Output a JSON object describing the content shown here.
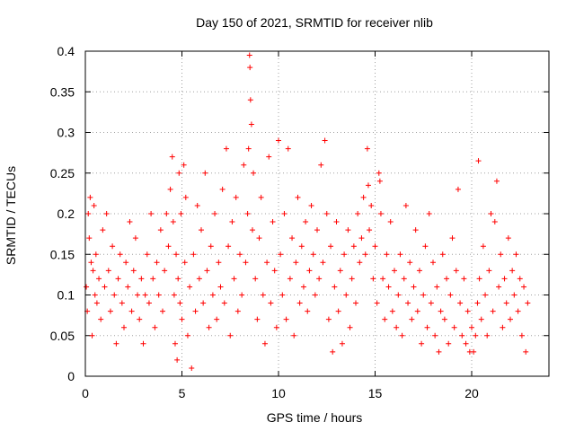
{
  "chart_data": {
    "type": "scatter",
    "title": "Day 150 of 2021, SRMTID for receiver nlib",
    "xlabel": "GPS time / hours",
    "ylabel": "SRMTID / TECUs",
    "xlim": [
      0,
      24
    ],
    "ylim": [
      0,
      0.4
    ],
    "x_ticks": [
      0,
      5,
      10,
      15,
      20
    ],
    "x_tick_labels": [
      "0",
      "5",
      "10",
      "15",
      "20"
    ],
    "y_ticks": [
      0,
      0.05,
      0.1,
      0.15,
      0.2,
      0.25,
      0.3,
      0.35,
      0.4
    ],
    "y_tick_labels": [
      "0",
      "0.05",
      "0.1",
      "0.15",
      "0.2",
      "0.25",
      "0.3",
      "0.35",
      "0.4"
    ],
    "grid": true,
    "marker": "plus",
    "color": "#ff0000",
    "series": [
      {
        "name": "SRMTID",
        "points": [
          [
            0.05,
            0.11
          ],
          [
            0.1,
            0.08
          ],
          [
            0.15,
            0.2
          ],
          [
            0.2,
            0.17
          ],
          [
            0.25,
            0.22
          ],
          [
            0.3,
            0.14
          ],
          [
            0.35,
            0.05
          ],
          [
            0.4,
            0.13
          ],
          [
            0.45,
            0.21
          ],
          [
            0.5,
            0.1
          ],
          [
            0.55,
            0.15
          ],
          [
            0.6,
            0.09
          ],
          [
            0.7,
            0.12
          ],
          [
            0.8,
            0.07
          ],
          [
            0.9,
            0.18
          ],
          [
            1.0,
            0.11
          ],
          [
            1.1,
            0.2
          ],
          [
            1.2,
            0.13
          ],
          [
            1.3,
            0.08
          ],
          [
            1.4,
            0.16
          ],
          [
            1.5,
            0.1
          ],
          [
            1.6,
            0.04
          ],
          [
            1.7,
            0.12
          ],
          [
            1.8,
            0.15
          ],
          [
            1.9,
            0.09
          ],
          [
            2.0,
            0.06
          ],
          [
            2.1,
            0.14
          ],
          [
            2.2,
            0.11
          ],
          [
            2.3,
            0.19
          ],
          [
            2.4,
            0.08
          ],
          [
            2.5,
            0.13
          ],
          [
            2.6,
            0.17
          ],
          [
            2.7,
            0.1
          ],
          [
            2.8,
            0.07
          ],
          [
            2.9,
            0.12
          ],
          [
            3.0,
            0.04
          ],
          [
            3.1,
            0.1
          ],
          [
            3.2,
            0.15
          ],
          [
            3.3,
            0.09
          ],
          [
            3.4,
            0.2
          ],
          [
            3.5,
            0.12
          ],
          [
            3.6,
            0.06
          ],
          [
            3.7,
            0.14
          ],
          [
            3.8,
            0.1
          ],
          [
            3.9,
            0.18
          ],
          [
            4.0,
            0.08
          ],
          [
            4.1,
            0.13
          ],
          [
            4.2,
            0.2
          ],
          [
            4.3,
            0.16
          ],
          [
            4.4,
            0.23
          ],
          [
            4.5,
            0.27
          ],
          [
            4.55,
            0.19
          ],
          [
            4.6,
            0.1
          ],
          [
            4.65,
            0.04
          ],
          [
            4.7,
            0.15
          ],
          [
            4.75,
            0.02
          ],
          [
            4.8,
            0.12
          ],
          [
            4.85,
            0.25
          ],
          [
            4.9,
            0.09
          ],
          [
            4.95,
            0.2
          ],
          [
            5.0,
            0.07
          ],
          [
            5.1,
            0.26
          ],
          [
            5.15,
            0.14
          ],
          [
            5.2,
            0.22
          ],
          [
            5.3,
            0.05
          ],
          [
            5.4,
            0.11
          ],
          [
            5.5,
            0.01
          ],
          [
            5.6,
            0.15
          ],
          [
            5.7,
            0.08
          ],
          [
            5.8,
            0.21
          ],
          [
            5.9,
            0.12
          ],
          [
            6.0,
            0.18
          ],
          [
            6.1,
            0.09
          ],
          [
            6.2,
            0.25
          ],
          [
            6.3,
            0.13
          ],
          [
            6.4,
            0.06
          ],
          [
            6.5,
            0.16
          ],
          [
            6.6,
            0.1
          ],
          [
            6.7,
            0.2
          ],
          [
            6.8,
            0.07
          ],
          [
            6.9,
            0.14
          ],
          [
            7.0,
            0.11
          ],
          [
            7.1,
            0.23
          ],
          [
            7.2,
            0.09
          ],
          [
            7.3,
            0.28
          ],
          [
            7.4,
            0.16
          ],
          [
            7.5,
            0.05
          ],
          [
            7.6,
            0.19
          ],
          [
            7.7,
            0.12
          ],
          [
            7.8,
            0.22
          ],
          [
            7.9,
            0.08
          ],
          [
            8.0,
            0.15
          ],
          [
            8.1,
            0.1
          ],
          [
            8.2,
            0.26
          ],
          [
            8.3,
            0.14
          ],
          [
            8.4,
            0.2
          ],
          [
            8.45,
            0.28
          ],
          [
            8.5,
            0.395
          ],
          [
            8.52,
            0.38
          ],
          [
            8.55,
            0.34
          ],
          [
            8.6,
            0.31
          ],
          [
            8.65,
            0.18
          ],
          [
            8.7,
            0.25
          ],
          [
            8.8,
            0.12
          ],
          [
            8.9,
            0.07
          ],
          [
            9.0,
            0.17
          ],
          [
            9.1,
            0.22
          ],
          [
            9.2,
            0.1
          ],
          [
            9.3,
            0.04
          ],
          [
            9.4,
            0.14
          ],
          [
            9.5,
            0.27
          ],
          [
            9.6,
            0.09
          ],
          [
            9.7,
            0.19
          ],
          [
            9.8,
            0.13
          ],
          [
            9.9,
            0.06
          ],
          [
            10.0,
            0.29
          ],
          [
            10.1,
            0.15
          ],
          [
            10.2,
            0.1
          ],
          [
            10.3,
            0.2
          ],
          [
            10.4,
            0.07
          ],
          [
            10.5,
            0.28
          ],
          [
            10.6,
            0.12
          ],
          [
            10.7,
            0.17
          ],
          [
            10.8,
            0.05
          ],
          [
            10.9,
            0.14
          ],
          [
            11.0,
            0.22
          ],
          [
            11.1,
            0.09
          ],
          [
            11.2,
            0.16
          ],
          [
            11.3,
            0.11
          ],
          [
            11.4,
            0.19
          ],
          [
            11.5,
            0.08
          ],
          [
            11.6,
            0.13
          ],
          [
            11.7,
            0.21
          ],
          [
            11.8,
            0.15
          ],
          [
            11.9,
            0.1
          ],
          [
            12.0,
            0.18
          ],
          [
            12.1,
            0.12
          ],
          [
            12.2,
            0.26
          ],
          [
            12.3,
            0.14
          ],
          [
            12.4,
            0.29
          ],
          [
            12.5,
            0.2
          ],
          [
            12.6,
            0.07
          ],
          [
            12.7,
            0.16
          ],
          [
            12.8,
            0.03
          ],
          [
            12.9,
            0.11
          ],
          [
            13.0,
            0.19
          ],
          [
            13.1,
            0.08
          ],
          [
            13.2,
            0.13
          ],
          [
            13.3,
            0.04
          ],
          [
            13.4,
            0.15
          ],
          [
            13.5,
            0.1
          ],
          [
            13.6,
            0.18
          ],
          [
            13.7,
            0.06
          ],
          [
            13.8,
            0.12
          ],
          [
            13.9,
            0.16
          ],
          [
            14.0,
            0.09
          ],
          [
            14.1,
            0.2
          ],
          [
            14.2,
            0.14
          ],
          [
            14.3,
            0.17
          ],
          [
            14.4,
            0.22
          ],
          [
            14.5,
            0.15
          ],
          [
            14.6,
            0.28
          ],
          [
            14.65,
            0.235
          ],
          [
            14.7,
            0.18
          ],
          [
            14.8,
            0.21
          ],
          [
            14.9,
            0.12
          ],
          [
            15.0,
            0.16
          ],
          [
            15.1,
            0.09
          ],
          [
            15.2,
            0.25
          ],
          [
            15.25,
            0.24
          ],
          [
            15.3,
            0.2
          ],
          [
            15.4,
            0.12
          ],
          [
            15.5,
            0.07
          ],
          [
            15.6,
            0.15
          ],
          [
            15.7,
            0.11
          ],
          [
            15.8,
            0.19
          ],
          [
            15.9,
            0.08
          ],
          [
            16.0,
            0.13
          ],
          [
            16.1,
            0.06
          ],
          [
            16.2,
            0.1
          ],
          [
            16.3,
            0.15
          ],
          [
            16.4,
            0.05
          ],
          [
            16.5,
            0.12
          ],
          [
            16.6,
            0.21
          ],
          [
            16.7,
            0.09
          ],
          [
            16.8,
            0.14
          ],
          [
            16.9,
            0.07
          ],
          [
            17.0,
            0.11
          ],
          [
            17.1,
            0.18
          ],
          [
            17.2,
            0.08
          ],
          [
            17.3,
            0.13
          ],
          [
            17.4,
            0.04
          ],
          [
            17.5,
            0.1
          ],
          [
            17.6,
            0.16
          ],
          [
            17.7,
            0.06
          ],
          [
            17.8,
            0.2
          ],
          [
            17.9,
            0.09
          ],
          [
            18.0,
            0.14
          ],
          [
            18.1,
            0.05
          ],
          [
            18.2,
            0.11
          ],
          [
            18.3,
            0.03
          ],
          [
            18.4,
            0.08
          ],
          [
            18.5,
            0.15
          ],
          [
            18.6,
            0.07
          ],
          [
            18.7,
            0.12
          ],
          [
            18.8,
            0.04
          ],
          [
            18.9,
            0.1
          ],
          [
            19.0,
            0.17
          ],
          [
            19.1,
            0.06
          ],
          [
            19.2,
            0.13
          ],
          [
            19.3,
            0.23
          ],
          [
            19.4,
            0.09
          ],
          [
            19.5,
            0.05
          ],
          [
            19.6,
            0.12
          ],
          [
            19.7,
            0.04
          ],
          [
            19.8,
            0.08
          ],
          [
            19.9,
            0.03
          ],
          [
            20.0,
            0.06
          ],
          [
            20.1,
            0.03
          ],
          [
            20.2,
            0.05
          ],
          [
            20.3,
            0.09
          ],
          [
            20.35,
            0.265
          ],
          [
            20.4,
            0.12
          ],
          [
            20.5,
            0.07
          ],
          [
            20.6,
            0.16
          ],
          [
            20.7,
            0.1
          ],
          [
            20.8,
            0.05
          ],
          [
            20.9,
            0.13
          ],
          [
            21.0,
            0.2
          ],
          [
            21.1,
            0.08
          ],
          [
            21.2,
            0.19
          ],
          [
            21.3,
            0.24
          ],
          [
            21.4,
            0.11
          ],
          [
            21.5,
            0.15
          ],
          [
            21.6,
            0.06
          ],
          [
            21.7,
            0.12
          ],
          [
            21.8,
            0.09
          ],
          [
            21.9,
            0.17
          ],
          [
            22.0,
            0.07
          ],
          [
            22.1,
            0.13
          ],
          [
            22.2,
            0.1
          ],
          [
            22.3,
            0.15
          ],
          [
            22.4,
            0.08
          ],
          [
            22.5,
            0.12
          ],
          [
            22.6,
            0.05
          ],
          [
            22.7,
            0.11
          ],
          [
            22.8,
            0.03
          ],
          [
            22.9,
            0.09
          ]
        ]
      }
    ]
  }
}
